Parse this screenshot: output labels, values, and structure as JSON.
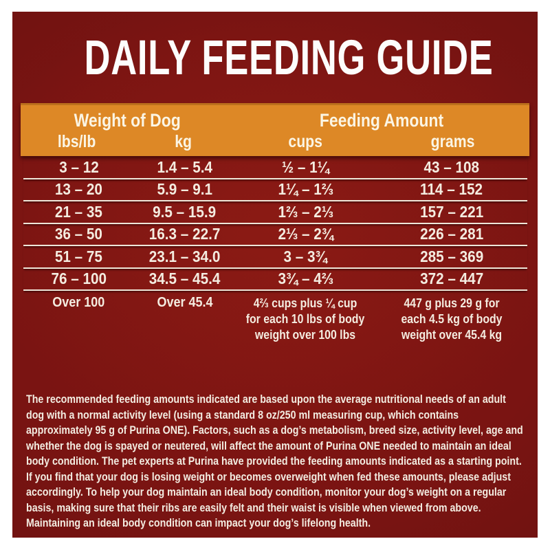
{
  "title": "DAILY FEEDING GUIDE",
  "table": {
    "group_headers": [
      {
        "label": "Weight of Dog"
      },
      {
        "label": "Feeding Amount"
      }
    ],
    "column_headers": [
      "lbs/lb",
      "kg",
      "cups",
      "grams"
    ],
    "rows": [
      [
        "3 – 12",
        "1.4 – 5.4",
        "½ – 1¼",
        "43 – 108"
      ],
      [
        "13 – 20",
        "5.9 – 9.1",
        "1¼ – 1⅔",
        "114 – 152"
      ],
      [
        "21 – 35",
        "9.5 – 15.9",
        "1⅔ – 2⅓",
        "157 – 221"
      ],
      [
        "36 – 50",
        "16.3 – 22.7",
        "2⅓ – 2¾",
        "226 – 281"
      ],
      [
        "51 – 75",
        "23.1 – 34.0",
        "3 – 3¾",
        "285 – 369"
      ],
      [
        "76 – 100",
        "34.5 – 45.4",
        "3¾ – 4⅔",
        "372 – 447"
      ],
      [
        "Over 100",
        "Over 45.4",
        "4⅔ cups plus ¼ cup for each 10 lbs of body weight over 100 lbs",
        "447 g plus 29 g for each 4.5 kg of body weight over 45.4 kg"
      ]
    ]
  },
  "footnote": "The recommended feeding amounts indicated are based upon the average nutritional needs of an adult dog with a normal activity level (using a standard 8 oz/250 ml measuring cup, which contains approximately 95 g of Purina ONE). Factors, such as a dog’s metabolism, breed size, activity level, age and whether the dog is spayed or neutered, will affect the amount of Purina ONE needed to maintain an ideal body condition. The pet experts at Purina have provided the feeding amounts indicated as a starting point. If you find that your dog is losing weight or becomes overweight when fed these amounts, please adjust accordingly. To help your dog maintain an ideal body condition, monitor your dog’s weight on a regular basis, making sure that their ribs are easily felt and their waist is visible when viewed from above. Maintaining an ideal body condition can impact your dog’s lifelong health.",
  "colors": {
    "background_maroon": "#7A1412",
    "header_orange": "#DD8826",
    "text_cream": "#F4ECE0",
    "frame_white": "#FFFFFF",
    "separator_line": "#EFE7D9"
  }
}
